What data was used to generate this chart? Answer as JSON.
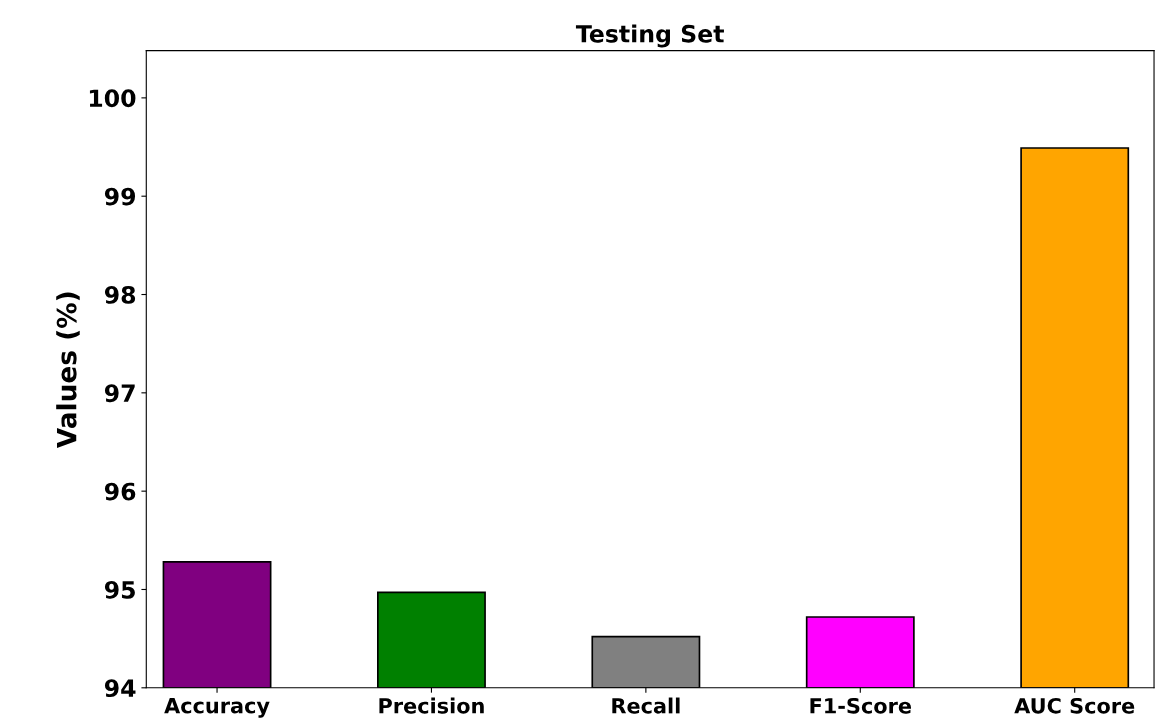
{
  "chart_data": {
    "type": "bar",
    "title": "Testing Set",
    "ylabel": "Values (%)",
    "categories": [
      "Accuracy",
      "Precision",
      "Recall",
      "F1-Score",
      "AUC Score"
    ],
    "values": [
      95.28,
      94.97,
      94.52,
      94.72,
      99.49
    ],
    "colors": [
      "#800080",
      "#008000",
      "#808080",
      "#ff00ff",
      "#ffa500"
    ],
    "ylim": [
      94,
      100.48
    ],
    "yticks": [
      94,
      95,
      96,
      97,
      98,
      99,
      100
    ],
    "grid": false
  }
}
